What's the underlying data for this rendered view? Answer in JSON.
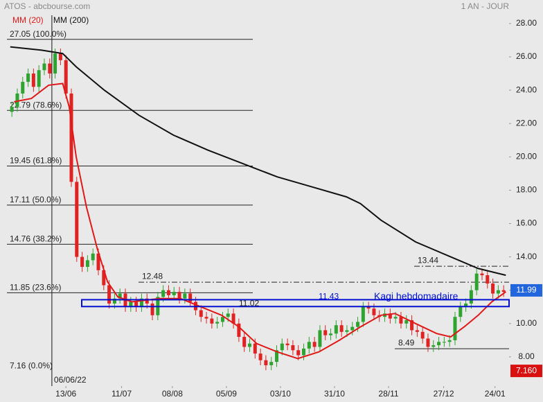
{
  "chart_data": {
    "type": "candlestick",
    "title": "ATOS - abcbourse.com",
    "subtitle": "1 AN - JOUR",
    "up_color": "#2fa32f",
    "down_color": "#e02222",
    "open": [
      22.7,
      23.0,
      23.8,
      24.5,
      25.0,
      24.2,
      25.2,
      25.6,
      25.0,
      26.2,
      25.8,
      23.8,
      18.5,
      14.0,
      13.4,
      13.8,
      14.2,
      13.2,
      12.3,
      11.2,
      11.5,
      11.8,
      11.0,
      11.3,
      11.0,
      11.5,
      11.2,
      10.5,
      11.6,
      12.0,
      11.7,
      11.9,
      11.5,
      11.8,
      11.3,
      10.8,
      10.4,
      10.3,
      10.0,
      10.1,
      10.4,
      10.6,
      10.0,
      9.2,
      8.6,
      8.8,
      8.2,
      7.8,
      7.5,
      7.7,
      8.4,
      8.8,
      8.7,
      8.4,
      8.1,
      8.5,
      8.9,
      8.6,
      9.6,
      9.3,
      9.4,
      9.9,
      9.5,
      9.6,
      9.8,
      10.1,
      11.0,
      10.9,
      10.5,
      10.4,
      10.6,
      10.3,
      10.4,
      10.0,
      10.2,
      9.6,
      9.5,
      9.1,
      8.6,
      8.7,
      8.9,
      8.9,
      9.0,
      10.4,
      11.0,
      11.2,
      12.0,
      13.0,
      12.9,
      12.4,
      11.8,
      12.0
    ],
    "high": [
      23.3,
      24.1,
      24.8,
      25.3,
      25.3,
      25.5,
      25.9,
      25.9,
      26.5,
      26.5,
      26.1,
      24.1,
      18.8,
      14.3,
      14.1,
      14.5,
      14.5,
      13.5,
      12.6,
      11.8,
      12.1,
      12.1,
      11.6,
      11.6,
      11.8,
      11.8,
      11.5,
      11.9,
      12.3,
      12.3,
      12.2,
      12.2,
      12.1,
      12.1,
      11.6,
      11.1,
      10.7,
      10.6,
      10.4,
      10.7,
      10.9,
      10.9,
      10.3,
      9.5,
      9.1,
      9.1,
      8.5,
      8.1,
      8.0,
      8.7,
      9.1,
      9.1,
      9.0,
      8.7,
      8.8,
      9.2,
      9.2,
      9.9,
      9.9,
      9.7,
      10.2,
      10.2,
      9.9,
      10.1,
      10.4,
      11.3,
      11.3,
      11.2,
      10.8,
      10.9,
      10.9,
      10.7,
      10.7,
      10.5,
      10.5,
      9.9,
      9.8,
      9.4,
      9.0,
      9.2,
      9.2,
      9.3,
      10.7,
      11.3,
      11.5,
      12.3,
      13.3,
      13.3,
      13.2,
      12.7,
      12.3,
      12.3
    ],
    "low": [
      22.4,
      22.7,
      23.5,
      24.2,
      23.9,
      23.9,
      24.9,
      24.7,
      24.7,
      25.5,
      23.5,
      18.2,
      13.7,
      13.1,
      13.1,
      13.5,
      12.9,
      12.0,
      10.9,
      10.9,
      11.2,
      10.7,
      10.7,
      10.7,
      10.7,
      10.9,
      10.2,
      10.2,
      11.3,
      11.4,
      11.4,
      11.2,
      11.2,
      11.0,
      10.5,
      10.1,
      10.0,
      9.7,
      9.7,
      9.8,
      10.1,
      9.7,
      8.9,
      8.3,
      8.3,
      7.9,
      7.5,
      7.2,
      7.2,
      7.4,
      8.1,
      8.4,
      8.1,
      7.8,
      7.8,
      8.2,
      8.3,
      8.3,
      9.0,
      9.0,
      9.1,
      9.2,
      9.2,
      9.3,
      9.5,
      9.8,
      10.6,
      10.2,
      10.1,
      10.1,
      10.0,
      10.0,
      9.7,
      9.7,
      9.3,
      9.2,
      8.8,
      8.3,
      8.3,
      8.4,
      8.6,
      8.6,
      8.7,
      10.1,
      10.7,
      10.9,
      11.7,
      12.6,
      12.1,
      11.5,
      11.5,
      11.6
    ],
    "close": [
      23.0,
      23.8,
      24.5,
      25.0,
      24.2,
      25.2,
      25.6,
      25.0,
      26.2,
      25.8,
      23.8,
      18.5,
      14.0,
      13.4,
      13.8,
      14.2,
      13.2,
      12.3,
      11.2,
      11.5,
      11.8,
      11.0,
      11.3,
      11.0,
      11.5,
      11.2,
      10.5,
      11.6,
      12.0,
      11.7,
      11.9,
      11.5,
      11.8,
      11.3,
      10.8,
      10.4,
      10.3,
      10.0,
      10.1,
      10.4,
      10.6,
      10.0,
      9.2,
      8.6,
      8.8,
      8.2,
      7.8,
      7.5,
      7.7,
      8.4,
      8.8,
      8.7,
      8.4,
      8.1,
      8.5,
      8.9,
      8.6,
      9.6,
      9.3,
      9.4,
      9.9,
      9.5,
      9.6,
      9.8,
      10.1,
      11.0,
      10.9,
      10.5,
      10.4,
      10.6,
      10.3,
      10.4,
      10.0,
      10.2,
      9.6,
      9.5,
      9.1,
      8.6,
      8.7,
      8.9,
      8.9,
      9.0,
      10.4,
      11.0,
      11.2,
      12.0,
      13.0,
      12.9,
      12.4,
      11.8,
      12.0,
      11.9
    ],
    "series": [
      {
        "name": "MM (20)",
        "color": "#e01818",
        "x": [
          0.4,
          3.6,
          6.8,
          9.4,
          10.6,
          11.9,
          13.8,
          15.8,
          17.7,
          19.6,
          22.2,
          27.3,
          31.2,
          35.0,
          38.8,
          42.0,
          45.3,
          49.1,
          52.9,
          56.8,
          60.6,
          64.5,
          68.3,
          70.9,
          74.7,
          78.6,
          81.2,
          83.7,
          86.3,
          88.8,
          91.4
        ],
        "values": [
          23.3,
          23.5,
          24.3,
          24.4,
          23.0,
          20.0,
          17.0,
          14.5,
          12.5,
          11.6,
          11.3,
          11.5,
          11.5,
          11.0,
          10.5,
          9.8,
          8.8,
          8.3,
          7.9,
          8.3,
          9.0,
          9.8,
          10.5,
          10.6,
          10.0,
          9.4,
          9.2,
          9.8,
          10.5,
          11.3,
          11.9
        ]
      },
      {
        "name": "MM (200)",
        "color": "#111111",
        "x": [
          -0.3,
          5.5,
          9.4,
          11.9,
          17.1,
          23.5,
          29.9,
          36.3,
          42.7,
          49.1,
          55.5,
          61.9,
          64.5,
          68.3,
          74.7,
          81.2,
          86.3,
          91.4
        ],
        "values": [
          26.6,
          26.4,
          26.2,
          25.4,
          24.0,
          22.5,
          21.3,
          20.4,
          19.6,
          18.8,
          18.2,
          17.6,
          17.2,
          16.2,
          14.9,
          14.0,
          13.3,
          12.9
        ]
      }
    ],
    "levels": [
      {
        "value": 27.05,
        "label": "27.05 (100.0%)"
      },
      {
        "value": 22.79,
        "label": "22.79 (78.6%)"
      },
      {
        "value": 19.45,
        "label": "19.45 (61.8%)"
      },
      {
        "value": 17.11,
        "label": "17.11 (50.0%)"
      },
      {
        "value": 14.76,
        "label": "14.76 (38.2%)"
      },
      {
        "value": 11.85,
        "label": "11.85 (23.6%)"
      },
      {
        "value": 7.16,
        "label": "7.16 (0.0%)"
      }
    ],
    "hlines": [
      {
        "value": 12.48
      },
      {
        "value": 13.44
      },
      {
        "value": 8.49
      }
    ],
    "band": {
      "label": "Kagi hebdomadaire",
      "low": 11.02,
      "high": 11.43
    },
    "date_marker": {
      "x": 7.4,
      "label": "06/06/22"
    },
    "price_tags": [
      {
        "value": 11.99,
        "color": "#2266dd"
      },
      {
        "value": 7.16,
        "label": "7.160",
        "color": "#d81010"
      }
    ],
    "xlim": [
      -2.2,
      92
    ],
    "xticks": [
      {
        "value": 10,
        "label": "13/06"
      },
      {
        "value": 20.3,
        "label": "11/07"
      },
      {
        "value": 29.7,
        "label": "08/08"
      },
      {
        "value": 39.7,
        "label": "05/09"
      },
      {
        "value": 49.7,
        "label": "03/10"
      },
      {
        "value": 59.7,
        "label": "31/10"
      },
      {
        "value": 69.7,
        "label": "28/11"
      },
      {
        "value": 79.9,
        "label": "27/12"
      },
      {
        "value": 89.4,
        "label": "24/01"
      }
    ],
    "ylim": [
      6.25,
      29.41
    ],
    "yticks": [
      {
        "value": 8,
        "label": "8.00"
      },
      {
        "value": 10,
        "label": "10.00"
      },
      {
        "value": 12,
        "label": "12.00"
      },
      {
        "value": 14,
        "label": "14.00"
      },
      {
        "value": 16,
        "label": "16.00"
      },
      {
        "value": 18,
        "label": "18.00"
      },
      {
        "value": 20,
        "label": "20.00"
      },
      {
        "value": 22,
        "label": "22.00"
      },
      {
        "value": 24,
        "label": "24.00"
      },
      {
        "value": 26,
        "label": "26.00"
      },
      {
        "value": 28,
        "label": "28.00"
      }
    ]
  }
}
